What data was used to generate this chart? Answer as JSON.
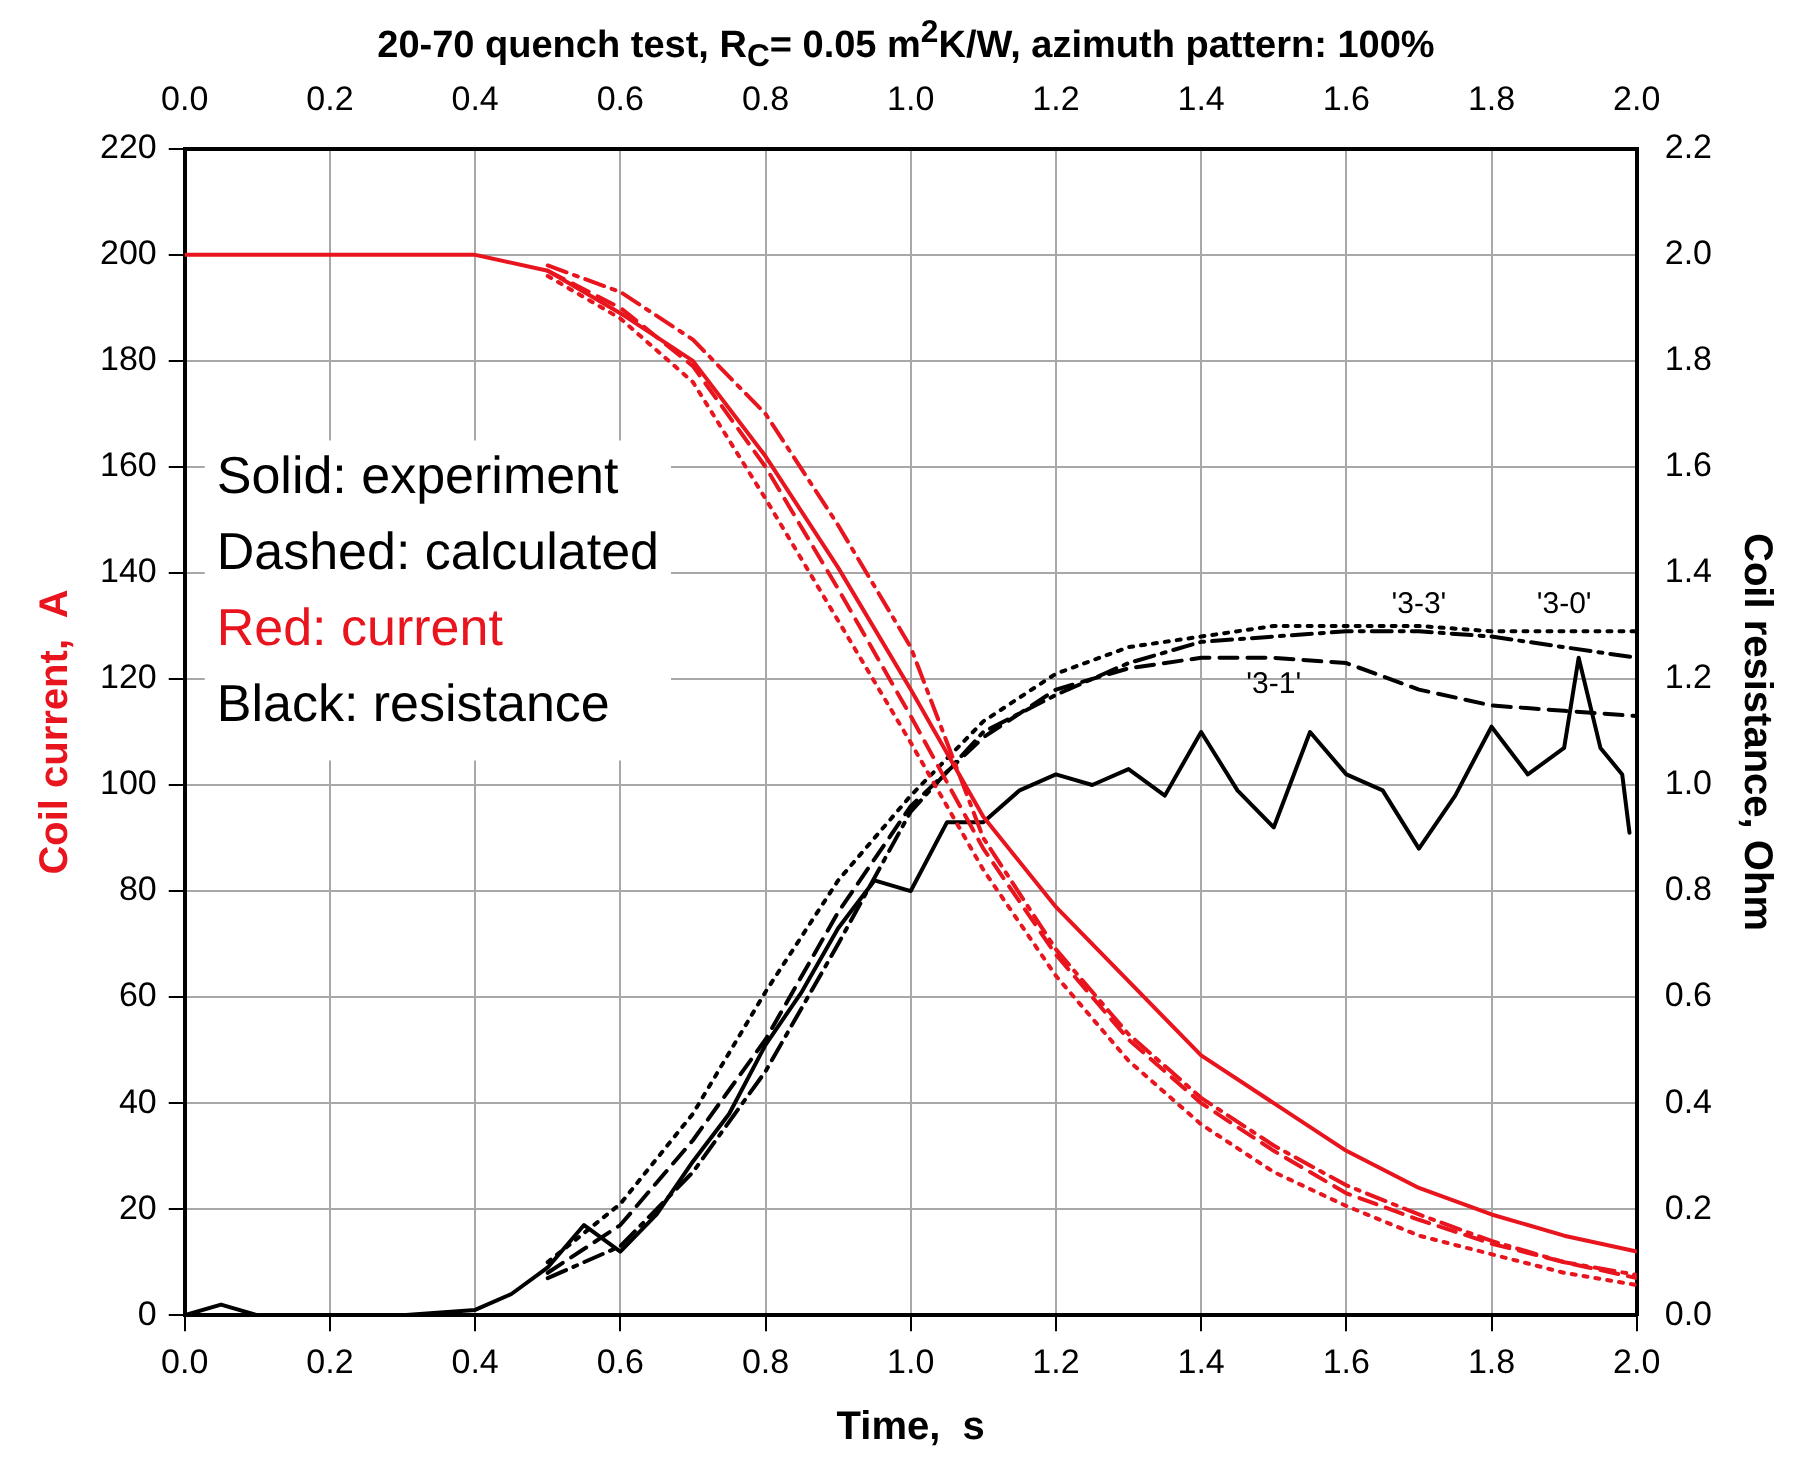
{
  "chart_data": {
    "type": "line",
    "title": "20-70 quench test, R$_{C}$= 0.05 m$^{2}$K/W, azimuth pattern: 100%",
    "xlabel": "Time,  s",
    "ylabel": "Coil current,  A",
    "y2label": "Coil resistance, Ohm",
    "annotations": [
      "Solid: experiment",
      "Dashed: calculated",
      "Red: current",
      "Black: resistance"
    ],
    "x": [
      0.5,
      0.6,
      0.7,
      0.8,
      0.9,
      1.0,
      1.1,
      1.2,
      1.3,
      1.4,
      1.5,
      1.6,
      1.7,
      1.8,
      1.9,
      2.0
    ],
    "series": [
      {
        "color": "#e8141e",
        "line_style": "solid",
        "x": [
          0,
          0.1,
          0.2,
          0.3,
          0.4,
          0.5,
          0.6,
          0.7,
          0.8,
          0.9,
          1.0,
          1.1,
          1.2,
          1.3,
          1.4,
          1.5,
          1.6,
          1.7,
          1.8,
          1.9,
          2.0
        ],
        "values": [
          200,
          200,
          200,
          200,
          200,
          197,
          189,
          180,
          162,
          141,
          118,
          94,
          77,
          63,
          49,
          40,
          31,
          24,
          19,
          15,
          12
        ]
      },
      {
        "color": "#e8141e",
        "line_style": "dashdot",
        "values": [
          198,
          193,
          184,
          170,
          149,
          126,
          90,
          69,
          53,
          41,
          32,
          24.5,
          19,
          14,
          10,
          7.6
        ]
      },
      {
        "color": "#e8141e",
        "line_style": "dashed",
        "values": [
          197,
          190,
          179,
          160,
          137,
          113,
          88,
          68,
          52,
          40,
          31,
          23,
          18,
          13.5,
          10,
          7
        ]
      },
      {
        "color": "#e8141e",
        "line_style": "dotted",
        "values": [
          196,
          188,
          176,
          154,
          131,
          108,
          84,
          64,
          48,
          36,
          27,
          20.6,
          15,
          11.5,
          8,
          5.7
        ]
      },
      {
        "color": "#000000",
        "line_style": "solid",
        "axis": "y2",
        "x": [
          0,
          0.05,
          0.1,
          0.2,
          0.3,
          0.4,
          0.45,
          0.5,
          0.55,
          0.6,
          0.65,
          0.7,
          0.75,
          0.8,
          0.85,
          0.9,
          0.95,
          1.0,
          1.05,
          1.1,
          1.15,
          1.2,
          1.25,
          1.3,
          1.35,
          1.4,
          1.45,
          1.5,
          1.55,
          1.6,
          1.65,
          1.7,
          1.75,
          1.8,
          1.85,
          1.9,
          1.92,
          1.95,
          1.98,
          1.99
        ],
        "values": [
          0,
          0.02,
          0,
          0,
          0,
          0.01,
          0.04,
          0.09,
          0.17,
          0.12,
          0.19,
          0.29,
          0.38,
          0.51,
          0.61,
          0.73,
          0.82,
          0.8,
          0.93,
          0.93,
          0.99,
          1.02,
          1.0,
          1.03,
          0.98,
          1.1,
          0.99,
          0.92,
          1.1,
          1.02,
          0.99,
          0.88,
          0.98,
          1.11,
          1.02,
          1.07,
          1.24,
          1.07,
          1.02,
          0.91
        ]
      },
      {
        "name": "'3-0'",
        "color": "#000000",
        "line_style": "dotted",
        "axis": "y2",
        "values": [
          0.1,
          0.21,
          0.38,
          0.61,
          0.82,
          0.98,
          1.12,
          1.21,
          1.26,
          1.28,
          1.3,
          1.3,
          1.3,
          1.29,
          1.29,
          1.29
        ]
      },
      {
        "name": "'3-3'",
        "color": "#000000",
        "line_style": "dashdot",
        "axis": "y2",
        "values": [
          0.07,
          0.13,
          0.27,
          0.46,
          0.7,
          0.95,
          1.1,
          1.17,
          1.23,
          1.27,
          1.28,
          1.29,
          1.29,
          1.28,
          1.26,
          1.24
        ]
      },
      {
        "name": "'3-1'",
        "color": "#000000",
        "line_style": "dashed",
        "axis": "y2",
        "values": [
          0.08,
          0.17,
          0.33,
          0.52,
          0.76,
          0.96,
          1.09,
          1.18,
          1.22,
          1.24,
          1.24,
          1.23,
          1.18,
          1.15,
          1.14,
          1.13
        ]
      }
    ],
    "xlim": [
      0,
      2.0
    ],
    "xticks": [
      {
        "value": 0,
        "label": "0.0"
      },
      {
        "value": 0.2,
        "label": "0.2"
      },
      {
        "value": 0.4,
        "label": "0.4"
      },
      {
        "value": 0.6,
        "label": "0.6"
      },
      {
        "value": 0.8,
        "label": "0.8"
      },
      {
        "value": 1.0,
        "label": "1.0"
      },
      {
        "value": 1.2,
        "label": "1.2"
      },
      {
        "value": 1.4,
        "label": "1.4"
      },
      {
        "value": 1.6,
        "label": "1.6"
      },
      {
        "value": 1.8,
        "label": "1.8"
      },
      {
        "value": 2.0,
        "label": "2.0"
      }
    ],
    "x2lim": [
      0,
      2.0
    ],
    "x2ticks": [
      {
        "value": 0,
        "label": "0.0"
      },
      {
        "value": 0.2,
        "label": "0.2"
      },
      {
        "value": 0.4,
        "label": "0.4"
      },
      {
        "value": 0.6,
        "label": "0.6"
      },
      {
        "value": 0.8,
        "label": "0.8"
      },
      {
        "value": 1.0,
        "label": "1.0"
      },
      {
        "value": 1.2,
        "label": "1.2"
      },
      {
        "value": 1.4,
        "label": "1.4"
      },
      {
        "value": 1.6,
        "label": "1.6"
      },
      {
        "value": 1.8,
        "label": "1.8"
      },
      {
        "value": 2.0,
        "label": "2.0"
      }
    ],
    "ylim": [
      0,
      220
    ],
    "yticks": [
      0,
      20,
      40,
      60,
      80,
      100,
      120,
      140,
      160,
      180,
      200,
      220
    ],
    "y2lim": [
      0,
      2.2
    ],
    "y2ticks": [
      {
        "value": 0,
        "label": "0.0"
      },
      {
        "value": 0.2,
        "label": "0.2"
      },
      {
        "value": 0.4,
        "label": "0.4"
      },
      {
        "value": 0.6,
        "label": "0.6"
      },
      {
        "value": 0.8,
        "label": "0.8"
      },
      {
        "value": 1.0,
        "label": "1.0"
      },
      {
        "value": 1.2,
        "label": "1.2"
      },
      {
        "value": 1.4,
        "label": "1.4"
      },
      {
        "value": 1.6,
        "label": "1.6"
      },
      {
        "value": 1.8,
        "label": "1.8"
      },
      {
        "value": 2.0,
        "label": "2.0"
      },
      {
        "value": 2.2,
        "label": "2.2"
      }
    ],
    "grid": true,
    "legend": false,
    "marker": "none"
  }
}
